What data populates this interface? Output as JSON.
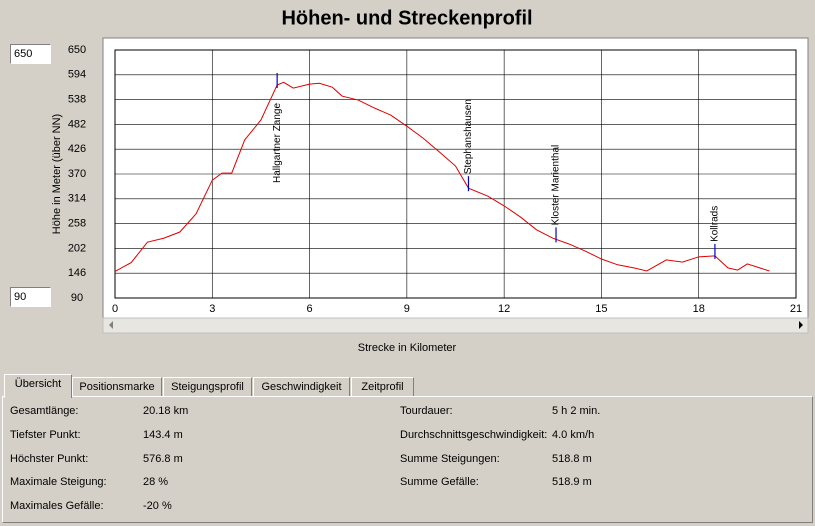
{
  "title": "Höhen- und Streckenprofil",
  "range_inputs": {
    "max": "650",
    "min": "90"
  },
  "chart_data": {
    "type": "line",
    "x_label": "Strecke in Kilometer",
    "y_label": "Höhe in Meter (über NN)",
    "x": [
      0,
      0.5,
      1,
      1.5,
      2,
      2.5,
      3,
      3.3,
      3.6,
      4,
      4.5,
      5,
      5.2,
      5.5,
      6,
      6.3,
      6.7,
      7,
      7.5,
      8,
      8.5,
      9,
      9.5,
      10,
      10.5,
      10.9,
      11.5,
      12,
      12.5,
      13,
      13.5,
      14,
      14.5,
      15,
      15.5,
      16,
      16.4,
      17,
      17.5,
      18,
      18.5,
      18.9,
      19.2,
      19.5,
      20.18
    ],
    "series": [
      {
        "color": "#e00000",
        "values": [
          150,
          170,
          216,
          225,
          239,
          280,
          356,
          372,
          372,
          447,
          492,
          571,
          577,
          564,
          573,
          575,
          566,
          546,
          537,
          519,
          503,
          478,
          451,
          420,
          388,
          338,
          320,
          298,
          273,
          244,
          225,
          212,
          196,
          178,
          165,
          158,
          151,
          176,
          171,
          183,
          185,
          158,
          153,
          167,
          151
        ]
      }
    ],
    "xlim": [
      0,
      21
    ],
    "xticks": [
      0,
      3,
      6,
      9,
      12,
      15,
      18,
      21
    ],
    "ylim": [
      90,
      650
    ],
    "yticks": [
      90,
      146,
      202,
      258,
      314,
      370,
      426,
      482,
      538,
      594,
      650
    ],
    "grid": true,
    "annotations": [
      {
        "text": "Hallgartner  Zange",
        "x": 5.0
      },
      {
        "text": "Stephanshausen",
        "x": 10.9
      },
      {
        "text": "Kloster  Marienthal",
        "x": 13.6
      },
      {
        "text": "Kollrads",
        "x": 18.5
      }
    ]
  },
  "tabs": [
    "Übersicht",
    "Positionsmarke",
    "Steigungsprofil",
    "Geschwindigkeit",
    "Zeitprofil"
  ],
  "overview": {
    "left": [
      {
        "label": "Gesamtlänge:",
        "value": "20.18 km"
      },
      {
        "label": "Tiefster Punkt:",
        "value": "143.4 m"
      },
      {
        "label": "Höchster Punkt:",
        "value": "576.8 m"
      },
      {
        "label": "Maximale Steigung:",
        "value": "28 %"
      },
      {
        "label": "Maximales Gefälle:",
        "value": "-20 %"
      }
    ],
    "right": [
      {
        "label": "Tourdauer:",
        "value": "5 h 2 min."
      },
      {
        "label": "Durchschnittsgeschwindigkeit:",
        "value": "4.0 km/h"
      },
      {
        "label": "Summe Steigungen:",
        "value": "518.8 m"
      },
      {
        "label": "Summe Gefälle:",
        "value": "518.9 m"
      }
    ]
  }
}
